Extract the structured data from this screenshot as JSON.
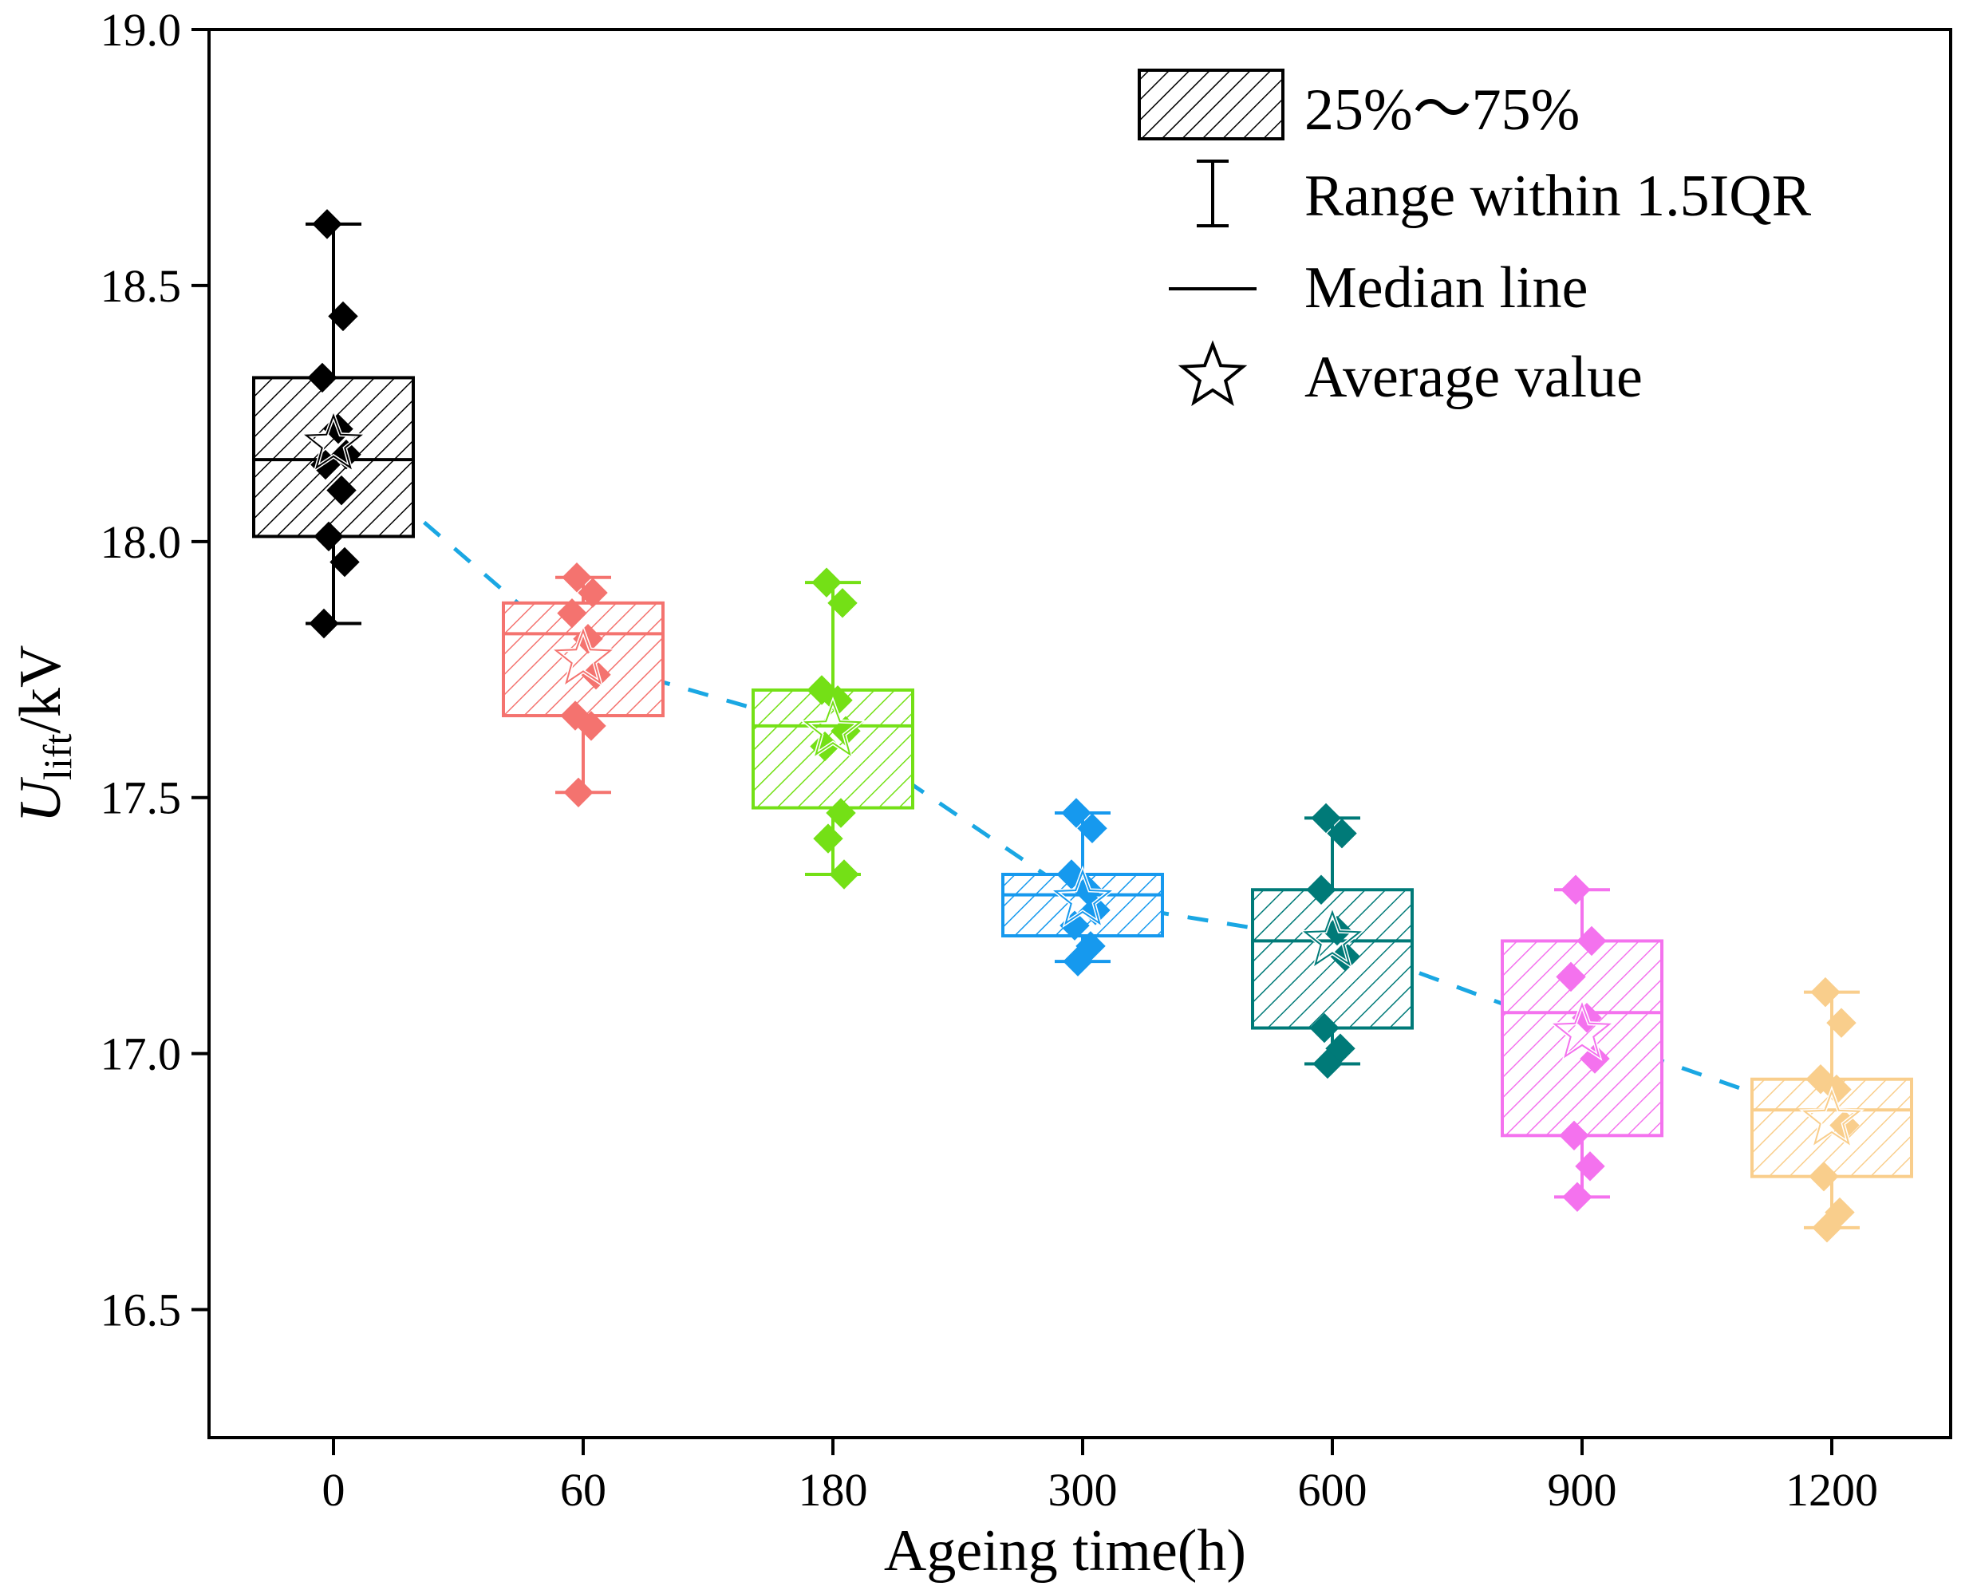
{
  "chart_data": {
    "type": "box",
    "xlabel": "Ageing time(h)",
    "ylabel": {
      "main": "U",
      "sub": "lift",
      "suffix": "/kV"
    },
    "ylim": [
      16.25,
      19.0
    ],
    "yticks": [
      "16.5",
      "17.0",
      "17.5",
      "18.0",
      "18.5",
      "19.0"
    ],
    "categories": [
      "0",
      "60",
      "180",
      "300",
      "600",
      "900",
      "1200"
    ],
    "colors": [
      "#000000",
      "#f4736f",
      "#74e016",
      "#1699ee",
      "#007a78",
      "#f472ee",
      "#f9ce8c"
    ],
    "trend_color": "#1aa7e3",
    "series": [
      {
        "category": "0",
        "whisker_low": 17.84,
        "q1": 18.01,
        "median": 18.16,
        "q3": 18.32,
        "whisker_high": 18.62,
        "mean": 18.19,
        "points": [
          18.62,
          18.44,
          18.32,
          18.22,
          18.17,
          18.15,
          18.1,
          18.01,
          17.96,
          17.84
        ]
      },
      {
        "category": "60",
        "whisker_low": 17.51,
        "q1": 17.66,
        "median": 17.82,
        "q3": 17.88,
        "whisker_high": 17.93,
        "mean": 17.77,
        "points": [
          17.93,
          17.9,
          17.86,
          17.81,
          17.74,
          17.66,
          17.64,
          17.51
        ]
      },
      {
        "category": "180",
        "whisker_low": 17.35,
        "q1": 17.48,
        "median": 17.64,
        "q3": 17.71,
        "whisker_high": 17.92,
        "mean": 17.63,
        "points": [
          17.92,
          17.88,
          17.71,
          17.69,
          17.63,
          17.6,
          17.47,
          17.42,
          17.35
        ]
      },
      {
        "category": "300",
        "whisker_low": 17.18,
        "q1": 17.23,
        "median": 17.31,
        "q3": 17.35,
        "whisker_high": 17.47,
        "mean": 17.3,
        "points": [
          17.47,
          17.44,
          17.35,
          17.32,
          17.28,
          17.25,
          17.21,
          17.18
        ]
      },
      {
        "category": "600",
        "whisker_low": 16.98,
        "q1": 17.05,
        "median": 17.22,
        "q3": 17.32,
        "whisker_high": 17.46,
        "mean": 17.22,
        "points": [
          17.46,
          17.43,
          17.32,
          17.24,
          17.19,
          17.05,
          17.01,
          16.98
        ]
      },
      {
        "category": "900",
        "whisker_low": 16.72,
        "q1": 16.84,
        "median": 17.08,
        "q3": 17.22,
        "whisker_high": 17.32,
        "mean": 17.04,
        "points": [
          17.32,
          17.22,
          17.15,
          17.07,
          16.99,
          16.84,
          16.78,
          16.72
        ]
      },
      {
        "category": "1200",
        "whisker_low": 16.66,
        "q1": 16.76,
        "median": 16.89,
        "q3": 16.95,
        "whisker_high": 17.12,
        "mean": 16.87,
        "points": [
          17.12,
          17.06,
          16.95,
          16.93,
          16.86,
          16.76,
          16.69,
          16.66
        ]
      }
    ],
    "legend": {
      "position": "top-right",
      "entries": [
        "25%～75%",
        "Range within 1.5IQR",
        "Median line",
        "Average value"
      ]
    }
  }
}
